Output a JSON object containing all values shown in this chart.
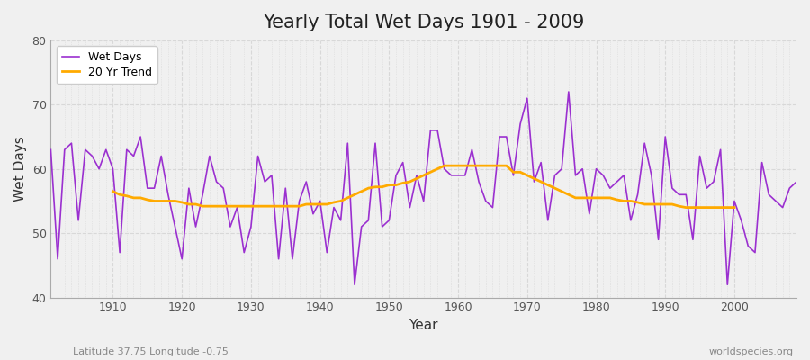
{
  "title": "Yearly Total Wet Days 1901 - 2009",
  "xlabel": "Year",
  "ylabel": "Wet Days",
  "subtitle_left": "Latitude 37.75 Longitude -0.75",
  "subtitle_right": "worldspecies.org",
  "ylim": [
    40,
    80
  ],
  "xlim": [
    1901,
    2009
  ],
  "yticks": [
    40,
    50,
    60,
    70,
    80
  ],
  "xticks": [
    1910,
    1920,
    1930,
    1940,
    1950,
    1960,
    1970,
    1980,
    1990,
    2000
  ],
  "wet_days_color": "#9b30d0",
  "trend_color": "#ffaa00",
  "bg_color": "#f0f0f0",
  "plot_bg_color": "#f0f0f0",
  "grid_color": "#d8d8d8",
  "legend_wet": "Wet Days",
  "legend_trend": "20 Yr Trend",
  "years": [
    1901,
    1902,
    1903,
    1904,
    1905,
    1906,
    1907,
    1908,
    1909,
    1910,
    1911,
    1912,
    1913,
    1914,
    1915,
    1916,
    1917,
    1918,
    1919,
    1920,
    1921,
    1922,
    1923,
    1924,
    1925,
    1926,
    1927,
    1928,
    1929,
    1930,
    1931,
    1932,
    1933,
    1934,
    1935,
    1936,
    1937,
    1938,
    1939,
    1940,
    1941,
    1942,
    1943,
    1944,
    1945,
    1946,
    1947,
    1948,
    1949,
    1950,
    1951,
    1952,
    1953,
    1954,
    1955,
    1956,
    1957,
    1958,
    1959,
    1960,
    1961,
    1962,
    1963,
    1964,
    1965,
    1966,
    1967,
    1968,
    1969,
    1970,
    1971,
    1972,
    1973,
    1974,
    1975,
    1976,
    1977,
    1978,
    1979,
    1980,
    1981,
    1982,
    1983,
    1984,
    1985,
    1986,
    1987,
    1988,
    1989,
    1990,
    1991,
    1992,
    1993,
    1994,
    1995,
    1996,
    1997,
    1998,
    1999,
    2000,
    2001,
    2002,
    2003,
    2004,
    2005,
    2006,
    2007,
    2008,
    2009
  ],
  "wet_days": [
    63,
    46,
    63,
    64,
    52,
    63,
    62,
    60,
    63,
    60,
    47,
    63,
    62,
    65,
    57,
    57,
    62,
    56,
    51,
    46,
    57,
    51,
    56,
    62,
    58,
    57,
    51,
    54,
    47,
    51,
    62,
    58,
    59,
    46,
    57,
    46,
    55,
    58,
    53,
    55,
    47,
    54,
    52,
    64,
    42,
    51,
    52,
    64,
    51,
    52,
    59,
    61,
    54,
    59,
    55,
    66,
    66,
    60,
    59,
    59,
    59,
    63,
    58,
    55,
    54,
    65,
    65,
    59,
    67,
    71,
    58,
    61,
    52,
    59,
    60,
    72,
    59,
    60,
    53,
    60,
    59,
    57,
    58,
    59,
    52,
    56,
    64,
    59,
    49,
    65,
    57,
    56,
    56,
    49,
    62,
    57,
    58,
    63,
    42,
    55,
    52,
    48,
    47,
    61,
    56,
    55,
    54,
    57,
    58
  ],
  "trend_vals": [
    null,
    null,
    null,
    null,
    null,
    null,
    null,
    null,
    null,
    56.5,
    56.0,
    55.8,
    55.5,
    55.5,
    55.2,
    55.0,
    55.0,
    55.0,
    55.0,
    54.8,
    54.5,
    54.5,
    54.2,
    54.2,
    54.2,
    54.2,
    54.2,
    54.2,
    54.2,
    54.2,
    54.2,
    54.2,
    54.2,
    54.2,
    54.2,
    54.2,
    54.2,
    54.5,
    54.5,
    54.5,
    54.5,
    54.8,
    55.0,
    55.5,
    56.0,
    56.5,
    57.0,
    57.2,
    57.2,
    57.5,
    57.5,
    57.8,
    58.0,
    58.5,
    59.0,
    59.5,
    60.0,
    60.5,
    60.5,
    60.5,
    60.5,
    60.5,
    60.5,
    60.5,
    60.5,
    60.5,
    60.5,
    59.5,
    59.5,
    59.0,
    58.5,
    58.0,
    57.5,
    57.0,
    56.5,
    56.0,
    55.5,
    55.5,
    55.5,
    55.5,
    55.5,
    55.5,
    55.2,
    55.0,
    55.0,
    54.8,
    54.5,
    54.5,
    54.5,
    54.5,
    54.5,
    54.2,
    54.0,
    54.0,
    54.0,
    54.0,
    54.0,
    54.0,
    54.0,
    54.0,
    null,
    null,
    null,
    null,
    null,
    null,
    null,
    null,
    null
  ]
}
